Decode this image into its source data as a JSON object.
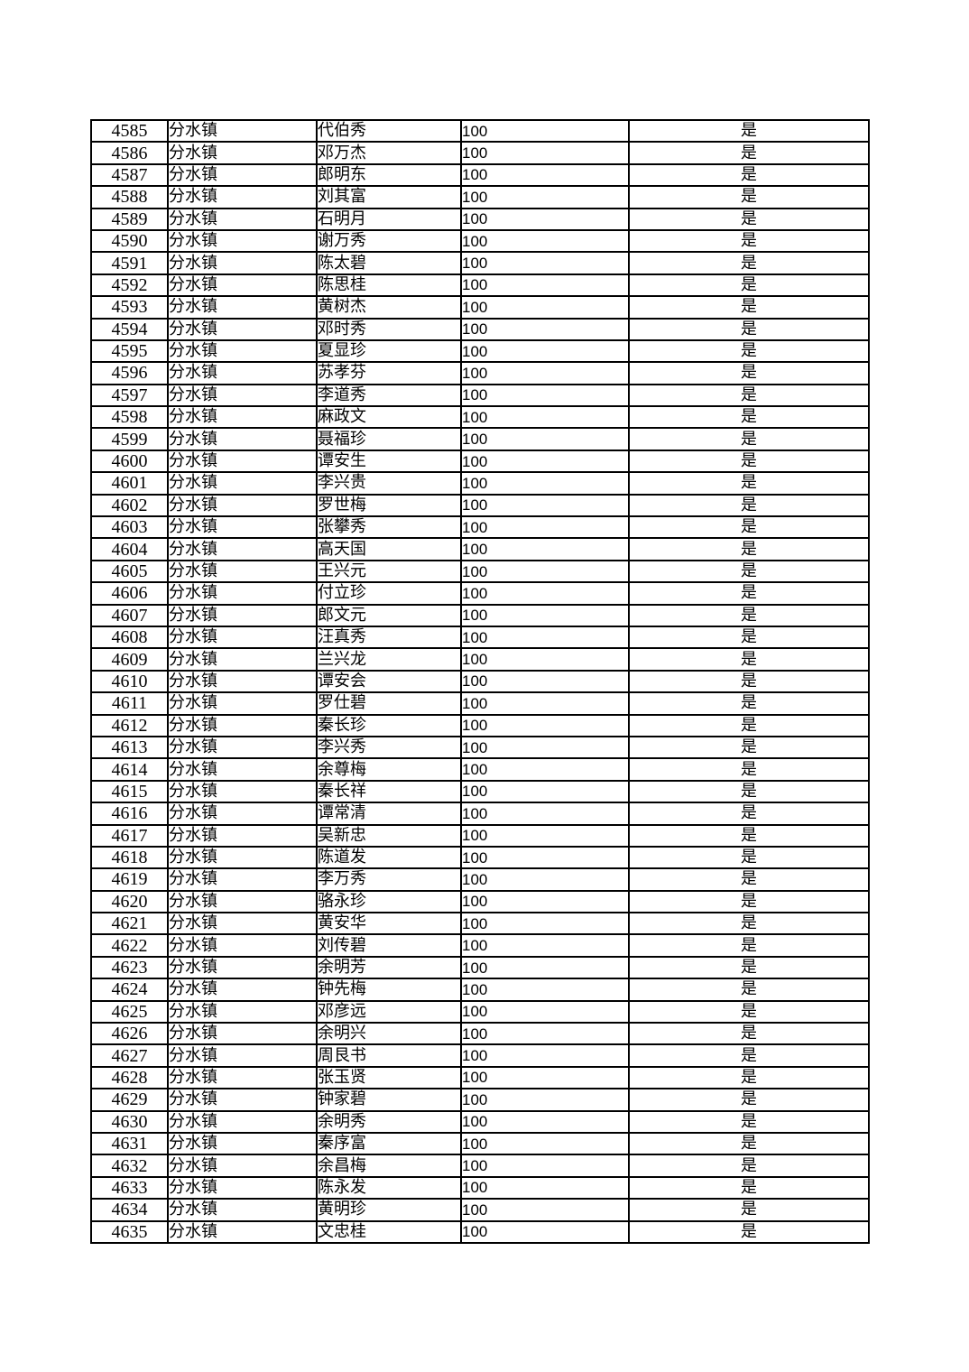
{
  "colors": {
    "page_background": "#ffffff",
    "table_border": "#000000",
    "text": "#000000"
  },
  "table": {
    "rows": [
      [
        "4585",
        "分水镇",
        "代伯秀",
        "100",
        "是"
      ],
      [
        "4586",
        "分水镇",
        "邓万杰",
        "100",
        "是"
      ],
      [
        "4587",
        "分水镇",
        "郎明东",
        "100",
        "是"
      ],
      [
        "4588",
        "分水镇",
        "刘其富",
        "100",
        "是"
      ],
      [
        "4589",
        "分水镇",
        "石明月",
        "100",
        "是"
      ],
      [
        "4590",
        "分水镇",
        "谢万秀",
        "100",
        "是"
      ],
      [
        "4591",
        "分水镇",
        "陈太碧",
        "100",
        "是"
      ],
      [
        "4592",
        "分水镇",
        "陈思桂",
        "100",
        "是"
      ],
      [
        "4593",
        "分水镇",
        "黄树杰",
        "100",
        "是"
      ],
      [
        "4594",
        "分水镇",
        "邓时秀",
        "100",
        "是"
      ],
      [
        "4595",
        "分水镇",
        "夏显珍",
        "100",
        "是"
      ],
      [
        "4596",
        "分水镇",
        "苏孝芬",
        "100",
        "是"
      ],
      [
        "4597",
        "分水镇",
        "李道秀",
        "100",
        "是"
      ],
      [
        "4598",
        "分水镇",
        "麻政文",
        "100",
        "是"
      ],
      [
        "4599",
        "分水镇",
        "聂福珍",
        "100",
        "是"
      ],
      [
        "4600",
        "分水镇",
        "谭安生",
        "100",
        "是"
      ],
      [
        "4601",
        "分水镇",
        "李兴贵",
        "100",
        "是"
      ],
      [
        "4602",
        "分水镇",
        "罗世梅",
        "100",
        "是"
      ],
      [
        "4603",
        "分水镇",
        "张攀秀",
        "100",
        "是"
      ],
      [
        "4604",
        "分水镇",
        "高天国",
        "100",
        "是"
      ],
      [
        "4605",
        "分水镇",
        "王兴元",
        "100",
        "是"
      ],
      [
        "4606",
        "分水镇",
        "付立珍",
        "100",
        "是"
      ],
      [
        "4607",
        "分水镇",
        "郎文元",
        "100",
        "是"
      ],
      [
        "4608",
        "分水镇",
        "汪真秀",
        "100",
        "是"
      ],
      [
        "4609",
        "分水镇",
        "兰兴龙",
        "100",
        "是"
      ],
      [
        "4610",
        "分水镇",
        "谭安会",
        "100",
        "是"
      ],
      [
        "4611",
        "分水镇",
        "罗仕碧",
        "100",
        "是"
      ],
      [
        "4612",
        "分水镇",
        "秦长珍",
        "100",
        "是"
      ],
      [
        "4613",
        "分水镇",
        "李兴秀",
        "100",
        "是"
      ],
      [
        "4614",
        "分水镇",
        "余尊梅",
        "100",
        "是"
      ],
      [
        "4615",
        "分水镇",
        "秦长祥",
        "100",
        "是"
      ],
      [
        "4616",
        "分水镇",
        "谭常清",
        "100",
        "是"
      ],
      [
        "4617",
        "分水镇",
        "吴新忠",
        "100",
        "是"
      ],
      [
        "4618",
        "分水镇",
        "陈道发",
        "100",
        "是"
      ],
      [
        "4619",
        "分水镇",
        "李万秀",
        "100",
        "是"
      ],
      [
        "4620",
        "分水镇",
        "骆永珍",
        "100",
        "是"
      ],
      [
        "4621",
        "分水镇",
        "黄安华",
        "100",
        "是"
      ],
      [
        "4622",
        "分水镇",
        "刘传碧",
        "100",
        "是"
      ],
      [
        "4623",
        "分水镇",
        "余明芳",
        "100",
        "是"
      ],
      [
        "4624",
        "分水镇",
        "钟先梅",
        "100",
        "是"
      ],
      [
        "4625",
        "分水镇",
        "邓彦远",
        "100",
        "是"
      ],
      [
        "4626",
        "分水镇",
        "余明兴",
        "100",
        "是"
      ],
      [
        "4627",
        "分水镇",
        "周艮书",
        "100",
        "是"
      ],
      [
        "4628",
        "分水镇",
        "张玉贤",
        "100",
        "是"
      ],
      [
        "4629",
        "分水镇",
        "钟家碧",
        "100",
        "是"
      ],
      [
        "4630",
        "分水镇",
        "余明秀",
        "100",
        "是"
      ],
      [
        "4631",
        "分水镇",
        "秦序富",
        "100",
        "是"
      ],
      [
        "4632",
        "分水镇",
        "余昌梅",
        "100",
        "是"
      ],
      [
        "4633",
        "分水镇",
        "陈永发",
        "100",
        "是"
      ],
      [
        "4634",
        "分水镇",
        "黄明珍",
        "100",
        "是"
      ],
      [
        "4635",
        "分水镇",
        "文忠桂",
        "100",
        "是"
      ]
    ]
  }
}
